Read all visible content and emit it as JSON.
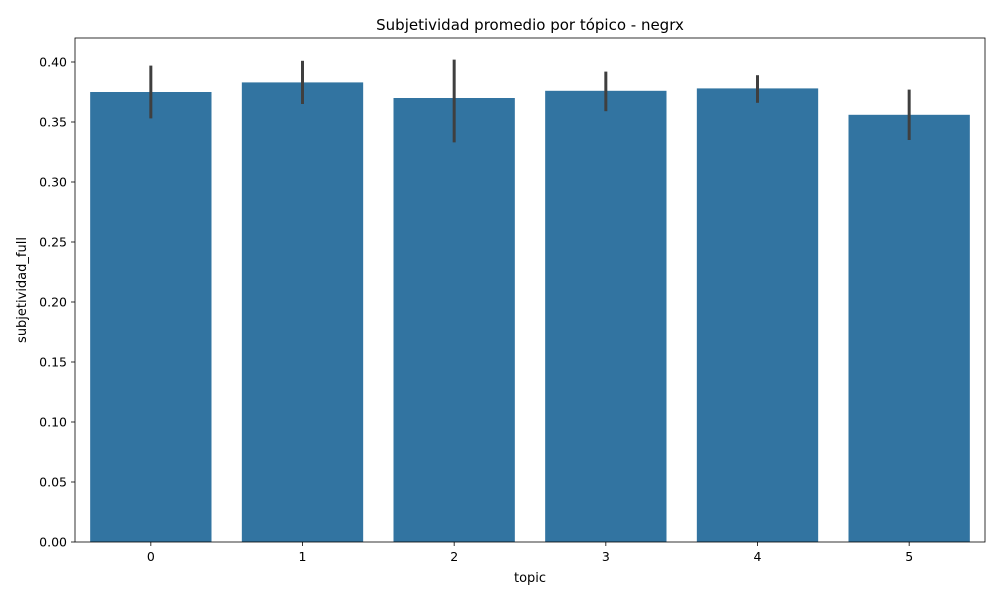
{
  "chart_data": {
    "type": "bar",
    "title": "Subjetividad promedio por tópico - negrx",
    "xlabel": "topic",
    "ylabel": "subjetividad_full",
    "categories": [
      "0",
      "1",
      "2",
      "3",
      "4",
      "5"
    ],
    "values": [
      0.375,
      0.383,
      0.37,
      0.376,
      0.378,
      0.356
    ],
    "error_low": [
      0.353,
      0.365,
      0.333,
      0.359,
      0.366,
      0.335
    ],
    "error_high": [
      0.397,
      0.401,
      0.402,
      0.392,
      0.389,
      0.377
    ],
    "ylim": [
      0,
      0.42
    ],
    "yticks": [
      0.0,
      0.05,
      0.1,
      0.15,
      0.2,
      0.25,
      0.3,
      0.35,
      0.4
    ],
    "ytick_labels": [
      "0.00",
      "0.05",
      "0.10",
      "0.15",
      "0.20",
      "0.25",
      "0.30",
      "0.35",
      "0.40"
    ],
    "grid": false,
    "bar_color": "#3274a1",
    "error_color": "#3f3f3f"
  }
}
